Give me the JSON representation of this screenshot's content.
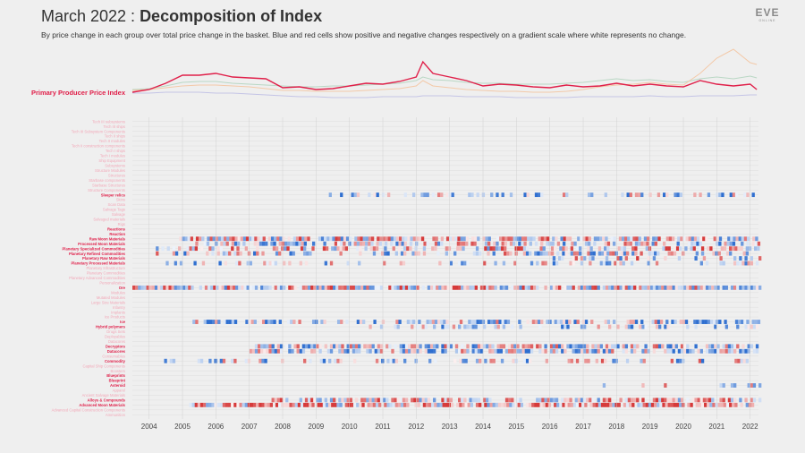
{
  "header": {
    "title_month": "March 2022 : ",
    "title_main": "Decomposition of Index",
    "subtitle": "By price change in each group over total price change in the basket. Blue and red cells show positive and negative changes respectively on a gradient scale where white represents no change."
  },
  "logo": {
    "text": "EVE",
    "subtext": "ONLINE"
  },
  "colors": {
    "background": "#efefef",
    "index_line": "#e0204a",
    "positive": "#2f6fd0",
    "negative": "#d63a3a",
    "label_active": "#e0204a",
    "label_faded": "#f2a8b8",
    "grid": "#dedede",
    "axis_text": "#444444"
  },
  "chart_data": [
    {
      "type": "line",
      "name": "index-sparkline",
      "series_label": "Primary Producer Price Index",
      "x": [
        2003.5,
        2004,
        2004.5,
        2005,
        2005.5,
        2006,
        2006.5,
        2007,
        2007.5,
        2008,
        2008.5,
        2009,
        2009.5,
        2010,
        2010.5,
        2011,
        2011.5,
        2012,
        2012.2,
        2012.5,
        2013,
        2013.5,
        2014,
        2014.5,
        2015,
        2015.5,
        2016,
        2016.5,
        2017,
        2017.5,
        2018,
        2018.5,
        2019,
        2019.5,
        2020,
        2020.5,
        2021,
        2021.5,
        2022,
        2022.2
      ],
      "values": [
        97,
        100,
        107,
        116,
        116,
        118,
        114,
        113,
        112,
        102,
        103,
        100,
        101,
        104,
        107,
        106,
        109,
        114,
        131,
        118,
        114,
        110,
        104,
        106,
        105,
        103,
        102,
        105,
        103,
        104,
        107,
        104,
        106,
        104,
        103,
        110,
        106,
        104,
        106,
        100
      ],
      "background_series": [
        {
          "values": [
            100,
            101,
            104,
            108,
            109,
            109,
            107,
            106,
            105,
            104,
            103,
            103,
            104,
            104,
            105,
            106,
            107,
            110,
            114,
            111,
            110,
            108,
            107,
            107,
            106,
            106,
            106,
            107,
            108,
            110,
            112,
            110,
            111,
            109,
            108,
            112,
            114,
            112,
            115,
            113
          ]
        },
        {
          "values": [
            99,
            100,
            102,
            104,
            105,
            105,
            104,
            103,
            101,
            99,
            99,
            98,
            98,
            98,
            99,
            100,
            101,
            104,
            110,
            104,
            102,
            100,
            99,
            98,
            98,
            97,
            97,
            98,
            100,
            103,
            105,
            106,
            108,
            106,
            105,
            118,
            135,
            145,
            130,
            128
          ]
        },
        {
          "values": [
            96,
            96,
            97,
            97,
            97,
            96,
            96,
            95,
            94,
            93,
            92,
            92,
            91,
            91,
            91,
            92,
            92,
            92,
            93,
            93,
            93,
            92,
            92,
            92,
            91,
            91,
            91,
            91,
            92,
            92,
            92,
            92,
            93,
            92,
            92,
            93,
            93,
            93,
            94,
            94
          ]
        }
      ]
    },
    {
      "type": "heatmap",
      "name": "decomposition-heatmap",
      "x_ticks": [
        "2004",
        "2005",
        "2006",
        "2007",
        "2008",
        "2009",
        "2010",
        "2011",
        "2012",
        "2013",
        "2014",
        "2015",
        "2016",
        "2017",
        "2018",
        "2019",
        "2020",
        "2021",
        "2022"
      ],
      "x_start": 2003.5,
      "x_end": 2022.25,
      "rows": [
        {
          "label": "Tech III subsystems",
          "active": false,
          "start": null,
          "density": 0,
          "bias": 0
        },
        {
          "label": "Tech III ships",
          "active": false,
          "start": null,
          "density": 0,
          "bias": 0
        },
        {
          "label": "Tech III Subsystem Components",
          "active": false,
          "start": null,
          "density": 0,
          "bias": 0
        },
        {
          "label": "Tech II ships",
          "active": false,
          "start": null,
          "density": 0,
          "bias": 0
        },
        {
          "label": "Tech II modules",
          "active": false,
          "start": null,
          "density": 0,
          "bias": 0
        },
        {
          "label": "Tech II construction components",
          "active": false,
          "start": null,
          "density": 0,
          "bias": 0
        },
        {
          "label": "Tech I ships",
          "active": false,
          "start": null,
          "density": 0,
          "bias": 0
        },
        {
          "label": "Tech I modules",
          "active": false,
          "start": null,
          "density": 0,
          "bias": 0
        },
        {
          "label": "Ship Equipment",
          "active": false,
          "start": null,
          "density": 0,
          "bias": 0
        },
        {
          "label": "Subsystems",
          "active": false,
          "start": null,
          "density": 0,
          "bias": 0
        },
        {
          "label": "Structure Modules",
          "active": false,
          "start": null,
          "density": 0,
          "bias": 0
        },
        {
          "label": "Structures",
          "active": false,
          "start": null,
          "density": 0,
          "bias": 0
        },
        {
          "label": "Starbase components",
          "active": false,
          "start": null,
          "density": 0,
          "bias": 0
        },
        {
          "label": "Starbase Structures",
          "active": false,
          "start": null,
          "density": 0,
          "bias": 0
        },
        {
          "label": "Structure Components",
          "active": false,
          "start": null,
          "density": 0,
          "bias": 0
        },
        {
          "label": "Sleeper relics",
          "active": true,
          "start": 2009.3,
          "density": 0.45,
          "bias": 0.3
        },
        {
          "label": "Skins",
          "active": false,
          "start": null,
          "density": 0,
          "bias": 0
        },
        {
          "label": "Scan Data",
          "active": false,
          "start": null,
          "density": 0,
          "bias": 0
        },
        {
          "label": "Salvage Tags",
          "active": false,
          "start": null,
          "density": 0,
          "bias": 0
        },
        {
          "label": "Salvage",
          "active": false,
          "start": null,
          "density": 0,
          "bias": 0
        },
        {
          "label": "Salvaged materials",
          "active": false,
          "start": null,
          "density": 0,
          "bias": 0
        },
        {
          "label": "Rigs",
          "active": false,
          "start": null,
          "density": 0,
          "bias": 0
        },
        {
          "label": "Reactions",
          "active": true,
          "start": null,
          "density": 0,
          "bias": 0
        },
        {
          "label": "Reaction",
          "active": true,
          "start": null,
          "density": 0,
          "bias": 0
        },
        {
          "label": "Raw Moon Materials",
          "active": true,
          "start": 2004.9,
          "density": 0.85,
          "bias": -0.1
        },
        {
          "label": "Processed Moon Materials",
          "active": true,
          "start": 2005.3,
          "density": 0.6,
          "bias": 0.1
        },
        {
          "label": "Planetary Specialized Commodities",
          "active": true,
          "start": 2004.2,
          "density": 0.55,
          "bias": -0.2
        },
        {
          "label": "Planetary Refined Commodities",
          "active": true,
          "start": 2004.2,
          "density": 0.5,
          "bias": 0.1
        },
        {
          "label": "Planetary Raw Materials",
          "active": true,
          "start": 2016,
          "density": 0.3,
          "bias": 0
        },
        {
          "label": "Planetary Processed Materials",
          "active": true,
          "start": 2004.5,
          "density": 0.35,
          "bias": 0.1
        },
        {
          "label": "Planetary Infrastructure",
          "active": false,
          "start": null,
          "density": 0,
          "bias": 0
        },
        {
          "label": "Planetary Commodities",
          "active": false,
          "start": null,
          "density": 0,
          "bias": 0
        },
        {
          "label": "Planetary Advanced Commodities",
          "active": false,
          "start": null,
          "density": 0,
          "bias": 0
        },
        {
          "label": "Personalization",
          "active": false,
          "start": null,
          "density": 0,
          "bias": 0
        },
        {
          "label": "Ore",
          "active": true,
          "start": 2003.5,
          "density": 0.95,
          "bias": -0.15
        },
        {
          "label": "Modules",
          "active": false,
          "start": null,
          "density": 0,
          "bias": 0
        },
        {
          "label": "Mutated Modules",
          "active": false,
          "start": null,
          "density": 0,
          "bias": 0
        },
        {
          "label": "Large Size Materials",
          "active": false,
          "start": null,
          "density": 0,
          "bias": 0
        },
        {
          "label": "Infantry",
          "active": false,
          "start": null,
          "density": 0,
          "bias": 0
        },
        {
          "label": "Implants",
          "active": false,
          "start": null,
          "density": 0,
          "bias": 0
        },
        {
          "label": "Ice Products",
          "active": false,
          "start": null,
          "density": 0,
          "bias": 0
        },
        {
          "label": "Ice",
          "active": true,
          "start": 2005.3,
          "density": 0.75,
          "bias": 0.25
        },
        {
          "label": "Hybrid polymers",
          "active": true,
          "start": 2010,
          "density": 0.4,
          "bias": 0.3
        },
        {
          "label": "Drugs Sets",
          "active": false,
          "start": null,
          "density": 0,
          "bias": 0
        },
        {
          "label": "Deployables",
          "active": false,
          "start": null,
          "density": 0,
          "bias": 0
        },
        {
          "label": "Datacores",
          "active": false,
          "start": null,
          "density": 0,
          "bias": 0
        },
        {
          "label": "Decryptors",
          "active": true,
          "start": 2007,
          "density": 0.8,
          "bias": 0.1
        },
        {
          "label": "Datacores",
          "active": true,
          "start": 2007,
          "density": 0.8,
          "bias": 0.2
        },
        {
          "label": "Consumables",
          "active": false,
          "start": null,
          "density": 0,
          "bias": 0
        },
        {
          "label": "Commodity",
          "active": true,
          "start": 2004.2,
          "density": 0.3,
          "bias": 0.1
        },
        {
          "label": "Capital Ship Components",
          "active": false,
          "start": null,
          "density": 0,
          "bias": 0
        },
        {
          "label": "Boosters",
          "active": false,
          "start": null,
          "density": 0,
          "bias": 0
        },
        {
          "label": "Blueprints",
          "active": true,
          "start": null,
          "density": 0,
          "bias": 0
        },
        {
          "label": "Blueprint",
          "active": true,
          "start": null,
          "density": 0,
          "bias": 0
        },
        {
          "label": "Asteroid",
          "active": true,
          "start": 2017,
          "density": 0.2,
          "bias": 0.2
        },
        {
          "label": "Apparel",
          "active": false,
          "start": null,
          "density": 0,
          "bias": 0
        },
        {
          "label": "Ancient Salvage Materials",
          "active": false,
          "start": null,
          "density": 0,
          "bias": 0
        },
        {
          "label": "Alloys & Compounds",
          "active": true,
          "start": 2007.5,
          "density": 0.7,
          "bias": -0.2
        },
        {
          "label": "Advanced Moon Materials",
          "active": true,
          "start": 2005.2,
          "density": 0.95,
          "bias": -0.3
        },
        {
          "label": "Advanced Capital Construction Components",
          "active": false,
          "start": null,
          "density": 0,
          "bias": 0
        },
        {
          "label": "Ammunition",
          "active": false,
          "start": null,
          "density": 0,
          "bias": 0
        }
      ]
    }
  ]
}
